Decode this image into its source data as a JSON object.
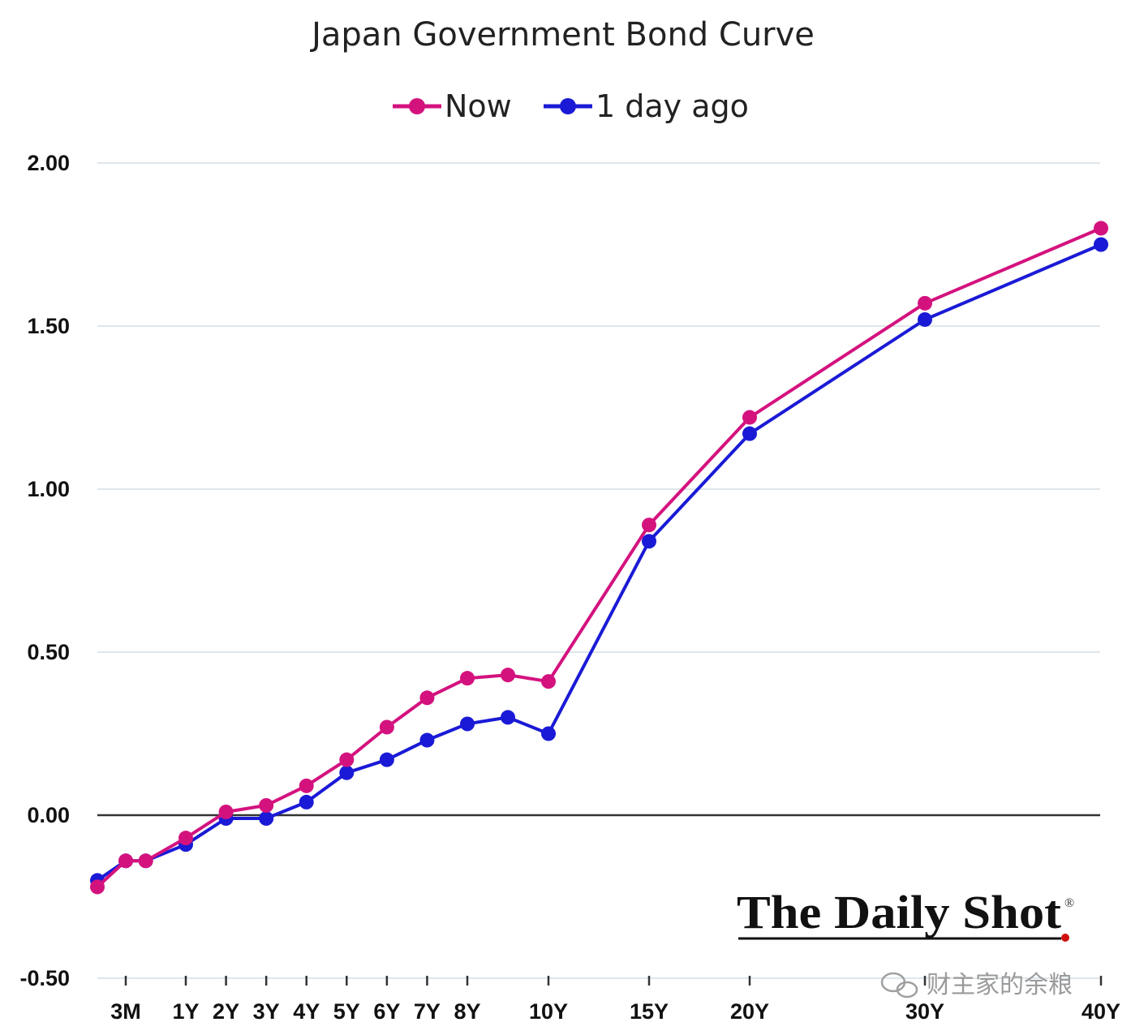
{
  "chart_data": {
    "type": "line",
    "title": "Japan Government Bond Curve",
    "xlabel": "",
    "ylabel": "",
    "ylim": [
      -0.5,
      2.0
    ],
    "yticks": [
      -0.5,
      0.0,
      0.5,
      1.0,
      1.5,
      2.0
    ],
    "ytick_labels": [
      "-0.50",
      "0.00",
      "0.50",
      "1.00",
      "1.50",
      "2.00"
    ],
    "x_maturity_years": [
      0.083,
      0.25,
      0.5,
      1,
      2,
      3,
      4,
      5,
      6,
      7,
      8,
      9,
      10,
      15,
      20,
      30,
      40
    ],
    "xtick_years": [
      0.25,
      1,
      2,
      3,
      4,
      5,
      6,
      7,
      8,
      10,
      15,
      20,
      30,
      40
    ],
    "xtick_labels": [
      "3M",
      "1Y",
      "2Y",
      "3Y",
      "4Y",
      "5Y",
      "6Y",
      "7Y",
      "8Y",
      "10Y",
      "15Y",
      "20Y",
      "30Y",
      "40Y"
    ],
    "series": [
      {
        "name": "Now",
        "color": "#d4127e",
        "values": [
          -0.22,
          -0.14,
          -0.14,
          -0.07,
          0.01,
          0.03,
          0.09,
          0.17,
          0.27,
          0.36,
          0.42,
          0.43,
          0.41,
          0.89,
          1.22,
          1.57,
          1.8
        ]
      },
      {
        "name": "1 day ago",
        "color": "#1a1ad6",
        "values": [
          -0.2,
          -0.14,
          -0.14,
          -0.09,
          -0.01,
          -0.01,
          0.04,
          0.13,
          0.17,
          0.23,
          0.28,
          0.3,
          0.25,
          0.84,
          1.17,
          1.52,
          1.75
        ]
      }
    ],
    "grid": true,
    "legend": "top-center"
  },
  "branding": {
    "logo_text": "The Daily Shot",
    "logo_mark": "®",
    "watermark_text": "财主家的余粮"
  }
}
